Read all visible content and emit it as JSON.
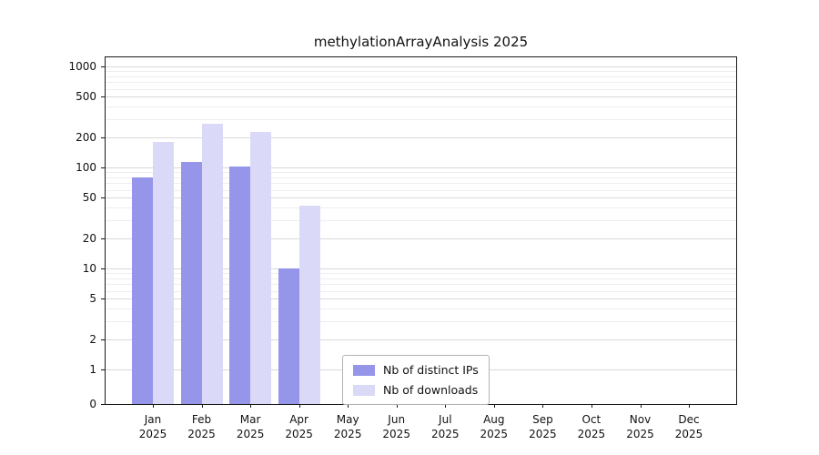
{
  "title": "methylationArrayAnalysis 2025",
  "chart_data": {
    "type": "bar",
    "title": "methylationArrayAnalysis 2025",
    "categories": [
      "Jan",
      "Feb",
      "Mar",
      "Apr",
      "May",
      "Jun",
      "Jul",
      "Aug",
      "Sep",
      "Oct",
      "Nov",
      "Dec"
    ],
    "year": "2025",
    "series": [
      {
        "name": "Nb of distinct IPs",
        "color": "#9595ea",
        "values": [
          80,
          113,
          102,
          10,
          0,
          0,
          0,
          0,
          0,
          0,
          0,
          0
        ]
      },
      {
        "name": "Nb of downloads",
        "color": "#dadaf8",
        "values": [
          180,
          270,
          225,
          42,
          0,
          0,
          0,
          0,
          0,
          0,
          0,
          0
        ]
      }
    ],
    "xlabel": "",
    "ylabel": "",
    "yscale": "log-with-zero-baseline",
    "ylim": [
      0,
      1000
    ],
    "y_ticks": [
      0,
      1,
      2,
      5,
      10,
      20,
      50,
      100,
      200,
      500,
      1000
    ],
    "y_minor_ticks": [
      3,
      4,
      6,
      7,
      8,
      9,
      30,
      40,
      60,
      70,
      80,
      90,
      300,
      400,
      600,
      700,
      800,
      900
    ],
    "grid": "horizontal",
    "legend_position": "bottom-center"
  }
}
